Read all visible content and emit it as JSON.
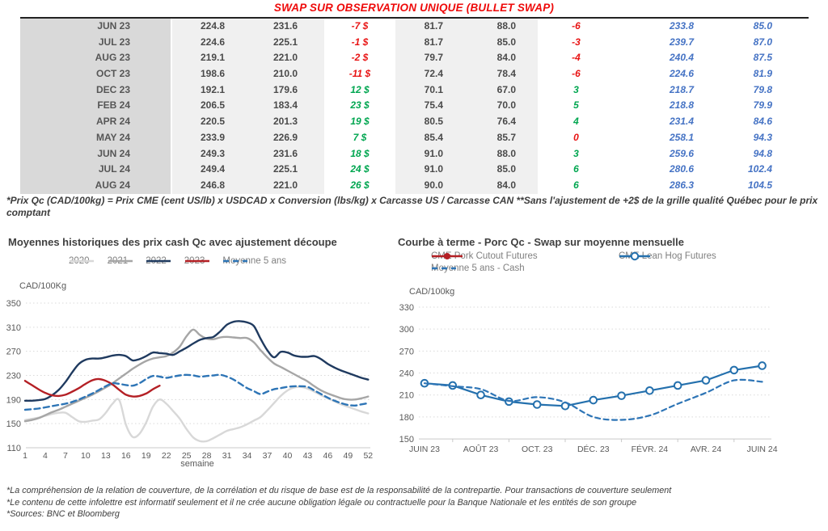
{
  "title": "SWAP SUR OBSERVATION UNIQUE (BULLET SWAP)",
  "colors": {
    "title_red": "#ee0a0a",
    "negative": "#e81313",
    "positive": "#00a650",
    "blue_column": "#4472c4",
    "month_column_bg": "#d9d9d9",
    "value_column_bg": "#f0f0f0",
    "series_2020": "#d8d8d8",
    "series_2021": "#a6a6a6",
    "series_2022": "#1f3a5f",
    "series_2023": "#b42025",
    "series_moyenne": "#2e75b6",
    "series_lean_hog": "#2470ad"
  },
  "table": {
    "rows": [
      {
        "month": "JUN 23",
        "v1": "224.8",
        "v2": "231.6",
        "d1": "-7 $",
        "d1c": "red",
        "v3": "81.7",
        "v4": "88.0",
        "d2": "-6",
        "d2c": "red",
        "b1": "233.8",
        "b2": "85.0"
      },
      {
        "month": "JUL 23",
        "v1": "224.6",
        "v2": "225.1",
        "d1": "-1 $",
        "d1c": "red",
        "v3": "81.7",
        "v4": "85.0",
        "d2": "-3",
        "d2c": "red",
        "b1": "239.7",
        "b2": "87.0"
      },
      {
        "month": "AUG 23",
        "v1": "219.1",
        "v2": "221.0",
        "d1": "-2 $",
        "d1c": "red",
        "v3": "79.7",
        "v4": "84.0",
        "d2": "-4",
        "d2c": "red",
        "b1": "240.4",
        "b2": "87.5"
      },
      {
        "month": "OCT 23",
        "v1": "198.6",
        "v2": "210.0",
        "d1": "-11 $",
        "d1c": "red",
        "v3": "72.4",
        "v4": "78.4",
        "d2": "-6",
        "d2c": "red",
        "b1": "224.6",
        "b2": "81.9"
      },
      {
        "month": "DEC 23",
        "v1": "192.1",
        "v2": "179.6",
        "d1": "12 $",
        "d1c": "green",
        "v3": "70.1",
        "v4": "67.0",
        "d2": "3",
        "d2c": "green",
        "b1": "218.7",
        "b2": "79.8"
      },
      {
        "month": "FEB 24",
        "v1": "206.5",
        "v2": "183.4",
        "d1": "23 $",
        "d1c": "green",
        "v3": "75.4",
        "v4": "70.0",
        "d2": "5",
        "d2c": "green",
        "b1": "218.8",
        "b2": "79.9"
      },
      {
        "month": "APR 24",
        "v1": "220.5",
        "v2": "201.3",
        "d1": "19 $",
        "d1c": "green",
        "v3": "80.5",
        "v4": "76.4",
        "d2": "4",
        "d2c": "green",
        "b1": "231.4",
        "b2": "84.6"
      },
      {
        "month": "MAY 24",
        "v1": "233.9",
        "v2": "226.9",
        "d1": "7 $",
        "d1c": "green",
        "v3": "85.4",
        "v4": "85.7",
        "d2": "0",
        "d2c": "red",
        "b1": "258.1",
        "b2": "94.3"
      },
      {
        "month": "JUN 24",
        "v1": "249.3",
        "v2": "231.6",
        "d1": "18 $",
        "d1c": "green",
        "v3": "91.0",
        "v4": "88.0",
        "d2": "3",
        "d2c": "green",
        "b1": "259.6",
        "b2": "94.8"
      },
      {
        "month": "JUL 24",
        "v1": "249.4",
        "v2": "225.1",
        "d1": "24 $",
        "d1c": "green",
        "v3": "91.0",
        "v4": "85.0",
        "d2": "6",
        "d2c": "green",
        "b1": "280.6",
        "b2": "102.4"
      },
      {
        "month": "AUG 24",
        "v1": "246.8",
        "v2": "221.0",
        "d1": "26 $",
        "d1c": "green",
        "v3": "90.0",
        "v4": "84.0",
        "d2": "6",
        "d2c": "green",
        "b1": "286.3",
        "b2": "104.5"
      }
    ]
  },
  "table_footnote": "*Prix Qc (CAD/100kg) = Prix CME (cent US/lb) x USDCAD x Conversion (lbs/kg) x Carcasse US / Carcasse CAN **Sans l'ajustement de +2$ de la grille qualité Québec pour le prix comptant",
  "left_chart": {
    "title": "Moyennes historiques des prix cash Qc avec ajustement découpe",
    "legend": [
      {
        "label": "2020",
        "color": "#d8d8d8"
      },
      {
        "label": "2021",
        "color": "#a6a6a6"
      },
      {
        "label": "2022",
        "color": "#1f3a5f"
      },
      {
        "label": "2023",
        "color": "#b42025"
      },
      {
        "label": "Moyenne 5 ans",
        "color": "#2e75b6",
        "dash": true
      }
    ]
  },
  "right_chart": {
    "title": "Courbe à terme - Porc Qc - Swap sur moyenne mensuelle",
    "legend": [
      {
        "label": "CME Pork Cutout Futures",
        "color": "#b42025",
        "marker": "filled"
      },
      {
        "label": "CME Lean Hog Futures",
        "color": "#2470ad",
        "marker": "open"
      },
      {
        "label": "Moyenne 5 ans - Cash",
        "color": "#2e75b6",
        "dash": true
      }
    ]
  },
  "chart_data": [
    {
      "type": "line",
      "title": "Moyennes historiques des prix cash Qc avec ajustement découpe",
      "ylabel": "CAD/100Kg",
      "xlabel": "semaine",
      "ylim": [
        110,
        350
      ],
      "yticks": [
        350,
        310,
        270,
        230,
        190,
        150,
        110
      ],
      "xticks": [
        1,
        4,
        7,
        10,
        13,
        16,
        19,
        22,
        25,
        28,
        31,
        34,
        37,
        40,
        43,
        46,
        49,
        52
      ],
      "x_range": [
        1,
        52
      ],
      "grid": "horizontal-dotted",
      "legend_position": "top",
      "series": [
        {
          "name": "2020",
          "color": "#d8d8d8",
          "start_week": 1,
          "values": [
            156,
            158,
            160,
            163,
            166,
            168,
            168,
            161,
            154,
            153,
            155,
            157,
            168,
            183,
            189,
            148,
            128,
            133,
            152,
            178,
            190,
            183,
            171,
            158,
            141,
            127,
            121,
            121,
            126,
            132,
            138,
            141,
            144,
            149,
            155,
            161,
            172,
            184,
            196,
            205,
            210,
            211,
            208,
            203,
            197,
            192,
            187,
            182,
            178,
            174,
            170,
            167
          ]
        },
        {
          "name": "2021",
          "color": "#a6a6a6",
          "start_week": 1,
          "values": [
            154,
            156,
            159,
            164,
            169,
            173,
            178,
            183,
            188,
            193,
            198,
            204,
            210,
            217,
            225,
            233,
            241,
            248,
            254,
            258,
            260,
            262,
            268,
            278,
            295,
            306,
            297,
            291,
            290,
            293,
            294,
            293,
            292,
            292,
            285,
            272,
            260,
            250,
            244,
            238,
            232,
            226,
            220,
            212,
            205,
            200,
            196,
            192,
            190,
            190,
            192,
            195
          ]
        },
        {
          "name": "2022",
          "color": "#1f3a5f",
          "start_week": 1,
          "values": [
            188,
            188,
            189,
            191,
            197,
            206,
            219,
            235,
            249,
            256,
            258,
            258,
            260,
            263,
            264,
            262,
            255,
            257,
            262,
            268,
            267,
            266,
            264,
            270,
            276,
            283,
            289,
            292,
            294,
            303,
            314,
            319,
            320,
            318,
            312,
            291,
            272,
            260,
            269,
            268,
            263,
            261,
            261,
            262,
            257,
            249,
            243,
            238,
            234,
            230,
            226,
            223
          ]
        },
        {
          "name": "2023",
          "color": "#b42025",
          "start_week": 1,
          "values": [
            221,
            214,
            207,
            201,
            197,
            196,
            198,
            203,
            209,
            216,
            222,
            224,
            221,
            215,
            206,
            198,
            195,
            196,
            200,
            207,
            213
          ]
        },
        {
          "name": "Moyenne 5 ans",
          "color": "#2e75b6",
          "dash": true,
          "start_week": 1,
          "values": [
            173,
            174,
            175,
            177,
            179,
            181,
            183,
            186,
            190,
            195,
            200,
            206,
            212,
            217,
            216,
            214,
            213,
            217,
            224,
            229,
            228,
            226,
            228,
            230,
            231,
            230,
            228,
            229,
            230,
            231,
            228,
            223,
            216,
            209,
            204,
            199,
            203,
            207,
            209,
            211,
            212,
            212,
            211,
            205,
            199,
            193,
            188,
            184,
            181,
            180,
            182,
            184
          ]
        }
      ]
    },
    {
      "type": "line",
      "title": "Courbe à terme - Porc Qc - Swap sur moyenne mensuelle",
      "ylabel": "CAD/100kg",
      "ylim": [
        150,
        330
      ],
      "yticks": [
        330,
        300,
        270,
        240,
        210,
        180,
        150
      ],
      "x_tick_labels": [
        "JUIN 23",
        "AOÛT 23",
        "OCT. 23",
        "DÉC. 23",
        "FÉVR. 24",
        "AVR. 24",
        "JUIN 24"
      ],
      "x_points": 13,
      "grid": "horizontal-dotted",
      "legend_position": "top",
      "series": [
        {
          "name": "CME Pork Cutout Futures",
          "color": "#b42025",
          "marker": "filled",
          "visible_in_plot": false,
          "values": []
        },
        {
          "name": "CME Lean Hog Futures",
          "color": "#2470ad",
          "marker": "open",
          "values": [
            226,
            223,
            210,
            201,
            197,
            195,
            203,
            209,
            216,
            223,
            230,
            244,
            250
          ]
        },
        {
          "name": "Moyenne 5 ans - Cash",
          "color": "#2e75b6",
          "dash": true,
          "values": [
            226,
            222,
            218,
            202,
            207,
            200,
            180,
            176,
            182,
            198,
            213,
            230,
            228
          ]
        }
      ]
    }
  ],
  "footnotes": [
    "*La compréhension de la relation de couverture, de la corrélation et du risque de base est de la responsabilité de la contrepartie. Pour transactions de couverture seulement",
    "*Le contenu de cette infolettre est informatif seulement et il ne crée aucune obligation légale ou contractuelle pour la Banque Nationale et les entités de son groupe",
    "*Sources: BNC et Bloomberg"
  ]
}
